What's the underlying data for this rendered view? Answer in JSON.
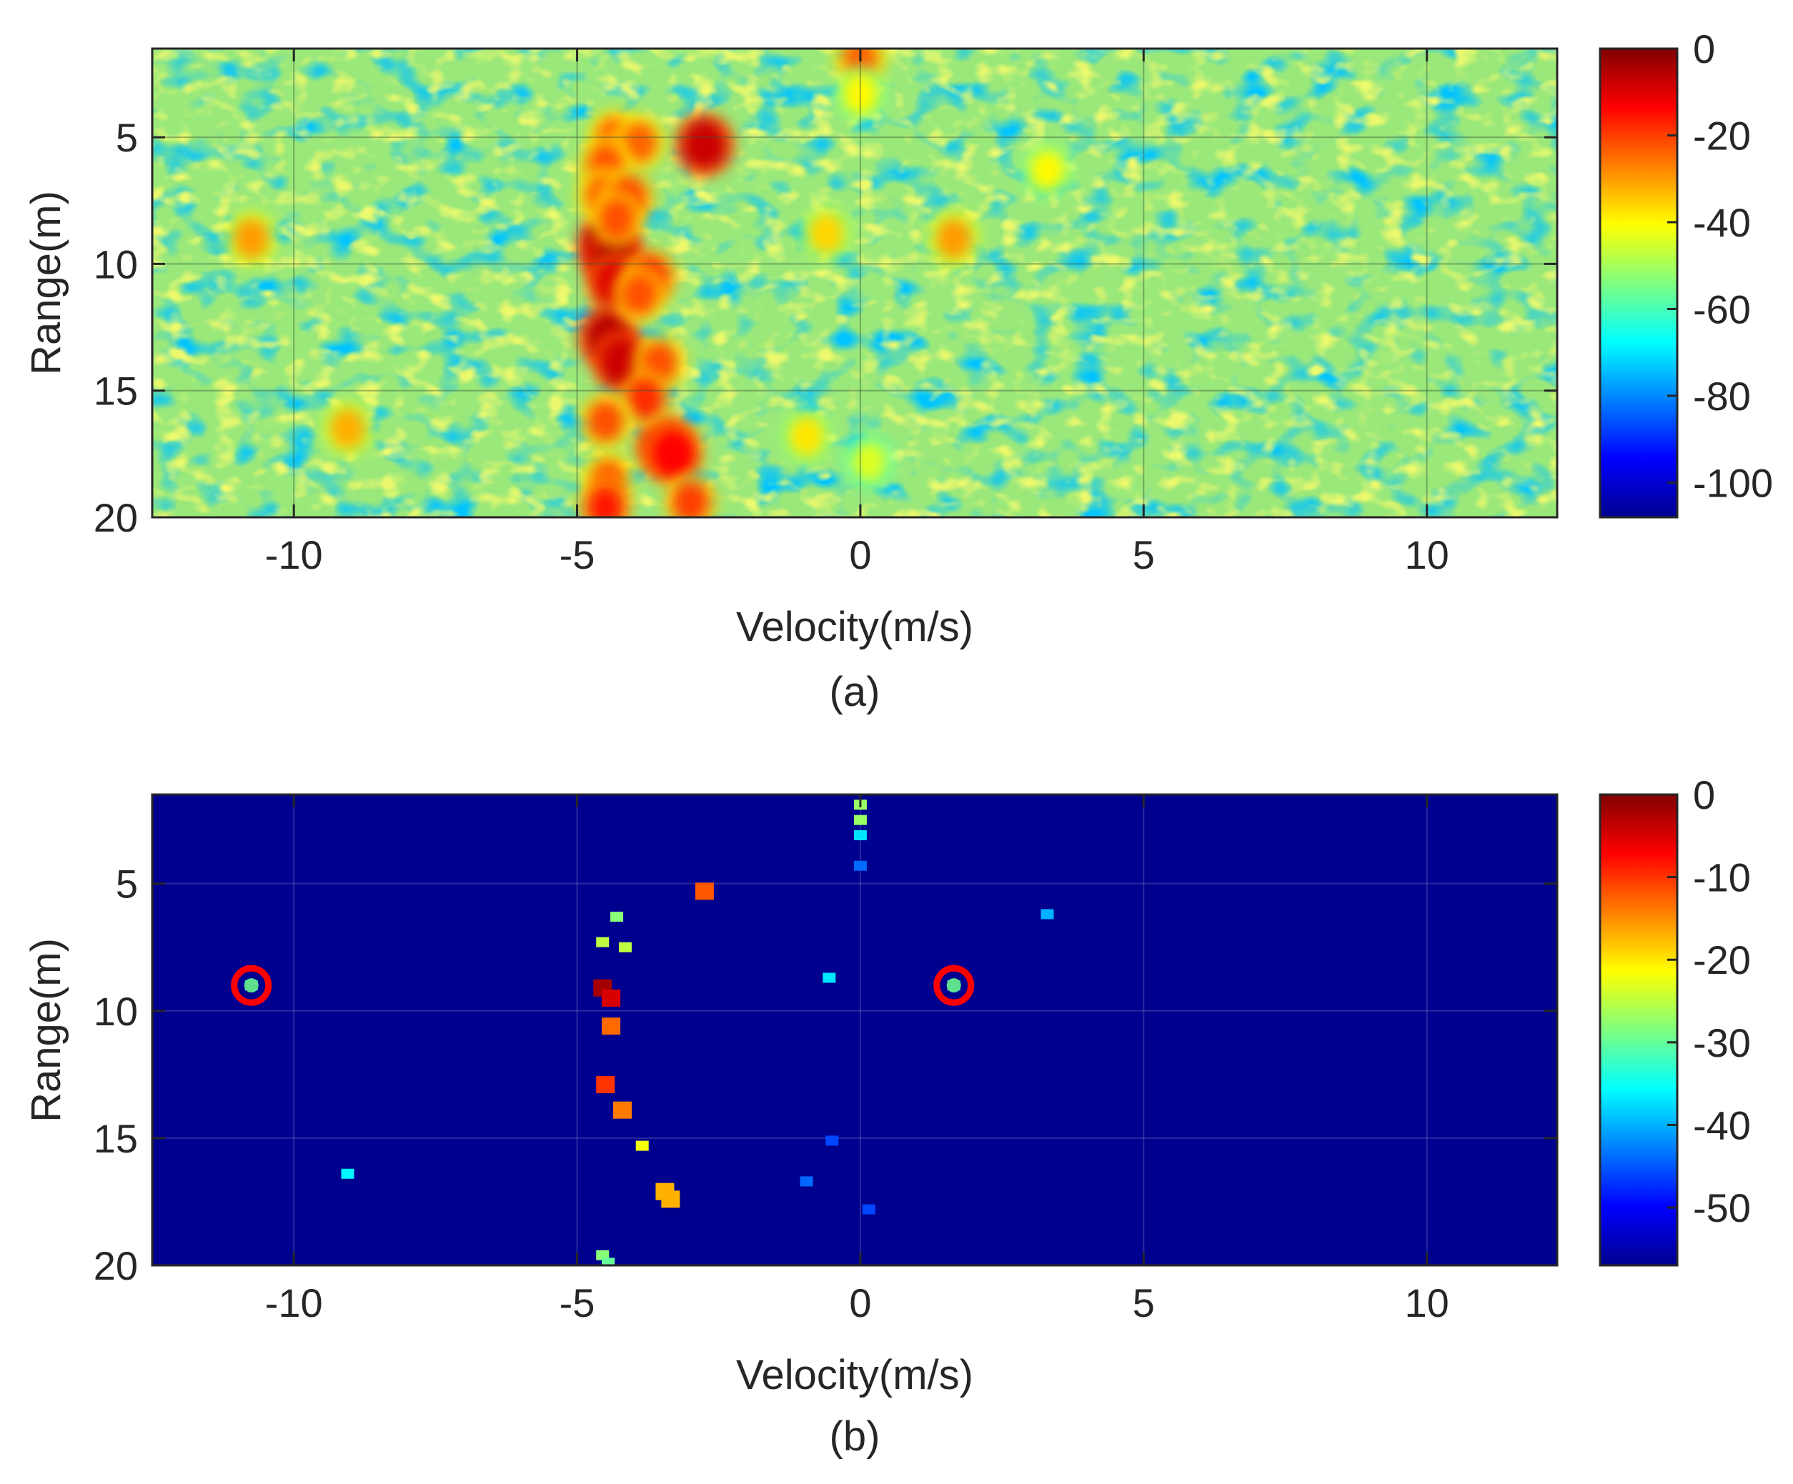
{
  "chart_data": [
    {
      "type": "heatmap",
      "caption": "(a)",
      "xlabel": "Velocity(m/s)",
      "ylabel": "Range(m)",
      "xlim": [
        -12.5,
        12.3
      ],
      "ylim": [
        1.5,
        20
      ],
      "y_reversed": true,
      "xticks": [
        -10,
        -5,
        0,
        5,
        10
      ],
      "yticks": [
        5,
        10,
        15,
        20
      ],
      "grid": true,
      "colormap": "jet",
      "colorbar": {
        "ticks": [
          0,
          -20,
          -40,
          -60,
          -80,
          -100
        ],
        "range": [
          -108,
          0
        ]
      },
      "background_level": -58,
      "peaks": [
        {
          "v": -4.45,
          "r": 9.2,
          "level": -2
        },
        {
          "v": -4.35,
          "r": 9.9,
          "level": -4
        },
        {
          "v": -4.3,
          "r": 10.8,
          "level": -10
        },
        {
          "v": -4.45,
          "r": 12.9,
          "level": -6
        },
        {
          "v": -4.2,
          "r": 13.9,
          "level": -8
        },
        {
          "v": -3.45,
          "r": 17.2,
          "level": -12
        },
        {
          "v": -3.3,
          "r": 17.5,
          "level": -14
        },
        {
          "v": -2.75,
          "r": 5.3,
          "level": -8
        },
        {
          "v": -4.35,
          "r": 5.0,
          "level": -24
        },
        {
          "v": -3.9,
          "r": 5.2,
          "level": -24
        },
        {
          "v": -4.5,
          "r": 6.1,
          "level": -22
        },
        {
          "v": -4.55,
          "r": 7.3,
          "level": -24
        },
        {
          "v": -4.1,
          "r": 7.4,
          "level": -20
        },
        {
          "v": -4.3,
          "r": 8.2,
          "level": -22
        },
        {
          "v": -3.7,
          "r": 10.5,
          "level": -18
        },
        {
          "v": -3.9,
          "r": 11.2,
          "level": -22
        },
        {
          "v": -3.55,
          "r": 13.9,
          "level": -22
        },
        {
          "v": -3.8,
          "r": 15.3,
          "level": -18
        },
        {
          "v": -4.5,
          "r": 16.2,
          "level": -22
        },
        {
          "v": -4.45,
          "r": 18.5,
          "level": -24
        },
        {
          "v": -4.5,
          "r": 19.6,
          "level": -16
        },
        {
          "v": -3.0,
          "r": 19.4,
          "level": -20
        },
        {
          "v": 0.0,
          "r": 1.9,
          "level": -24
        },
        {
          "v": 0.0,
          "r": 3.3,
          "level": -40
        },
        {
          "v": -10.75,
          "r": 9.0,
          "level": -30
        },
        {
          "v": -9.05,
          "r": 16.5,
          "level": -32
        },
        {
          "v": 1.65,
          "r": 9.0,
          "level": -30
        },
        {
          "v": 3.3,
          "r": 6.3,
          "level": -40
        },
        {
          "v": -0.6,
          "r": 8.8,
          "level": -36
        },
        {
          "v": -0.95,
          "r": 16.8,
          "level": -38
        },
        {
          "v": 0.15,
          "r": 17.8,
          "level": -44
        }
      ]
    },
    {
      "type": "heatmap",
      "caption": "(b)",
      "xlabel": "Velocity(m/s)",
      "ylabel": "Range(m)",
      "xlim": [
        -12.5,
        12.3
      ],
      "ylim": [
        1.5,
        20
      ],
      "y_reversed": true,
      "xticks": [
        -10,
        -5,
        0,
        5,
        10
      ],
      "yticks": [
        5,
        10,
        15,
        20
      ],
      "grid": true,
      "colormap": "jet",
      "colorbar": {
        "ticks": [
          0,
          -10,
          -20,
          -30,
          -40,
          -50
        ],
        "range": [
          -57,
          0
        ]
      },
      "background_level": -57,
      "detections": [
        {
          "v": -2.75,
          "r": 5.3,
          "level": -12
        },
        {
          "v": -4.55,
          "r": 9.1,
          "level": -2
        },
        {
          "v": -4.4,
          "r": 9.5,
          "level": -5
        },
        {
          "v": -4.4,
          "r": 10.6,
          "level": -13
        },
        {
          "v": -4.5,
          "r": 12.9,
          "level": -10
        },
        {
          "v": -4.2,
          "r": 13.9,
          "level": -14
        },
        {
          "v": -3.85,
          "r": 15.3,
          "level": -22
        },
        {
          "v": -3.45,
          "r": 17.1,
          "level": -17
        },
        {
          "v": -3.35,
          "r": 17.4,
          "level": -17
        },
        {
          "v": -4.3,
          "r": 6.3,
          "level": -28
        },
        {
          "v": -4.55,
          "r": 7.3,
          "level": -25
        },
        {
          "v": -4.15,
          "r": 7.5,
          "level": -25
        },
        {
          "v": -4.55,
          "r": 19.6,
          "level": -28
        },
        {
          "v": -4.45,
          "r": 19.9,
          "level": -30
        },
        {
          "v": 0.0,
          "r": 1.9,
          "level": -27
        },
        {
          "v": 0.0,
          "r": 2.5,
          "level": -27
        },
        {
          "v": 0.0,
          "r": 3.1,
          "level": -37
        },
        {
          "v": 0.0,
          "r": 4.3,
          "level": -44
        },
        {
          "v": -10.75,
          "r": 9.0,
          "level": -32
        },
        {
          "v": -9.05,
          "r": 16.4,
          "level": -36
        },
        {
          "v": 1.65,
          "r": 9.0,
          "level": -32
        },
        {
          "v": 3.3,
          "r": 6.2,
          "level": -40
        },
        {
          "v": -0.55,
          "r": 8.7,
          "level": -37
        },
        {
          "v": -0.5,
          "r": 15.1,
          "level": -46
        },
        {
          "v": -0.95,
          "r": 16.7,
          "level": -44
        },
        {
          "v": 0.15,
          "r": 17.8,
          "level": -46
        }
      ],
      "circled_targets": [
        {
          "v": -10.75,
          "r": 9.0
        },
        {
          "v": 1.65,
          "r": 9.0
        }
      ]
    }
  ]
}
